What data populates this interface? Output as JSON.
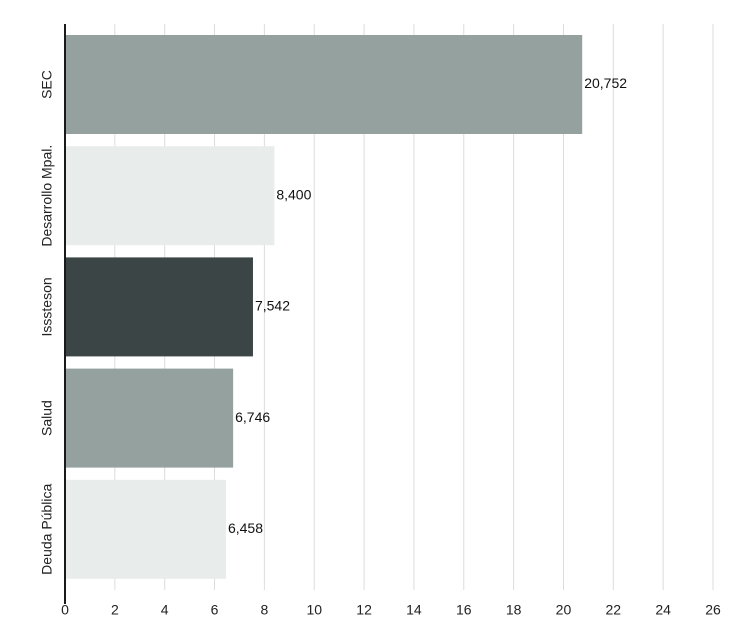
{
  "chart_data": {
    "type": "bar",
    "orientation": "horizontal",
    "categories": [
      "SEC",
      "Desarrollo Mpal.",
      "Isssteson",
      "Salud",
      "Deuda Pública"
    ],
    "values": [
      20.752,
      8.4,
      7.542,
      6.746,
      6.458
    ],
    "value_labels": [
      "20,752",
      "8,400",
      "7,542",
      "6,746",
      "6,458"
    ],
    "bar_colors": [
      "#94a19e",
      "#e8ecea",
      "#3b4546",
      "#94a19e",
      "#e8ecea"
    ],
    "xlim": [
      0,
      26
    ],
    "xticks": [
      0,
      2,
      4,
      6,
      8,
      10,
      12,
      14,
      16,
      18,
      20,
      22,
      24,
      26
    ],
    "tick_labels": [
      "0",
      "2",
      "4",
      "6",
      "8",
      "10",
      "12",
      "14",
      "16",
      "18",
      "20",
      "22",
      "24",
      "26"
    ],
    "grid": true
  }
}
